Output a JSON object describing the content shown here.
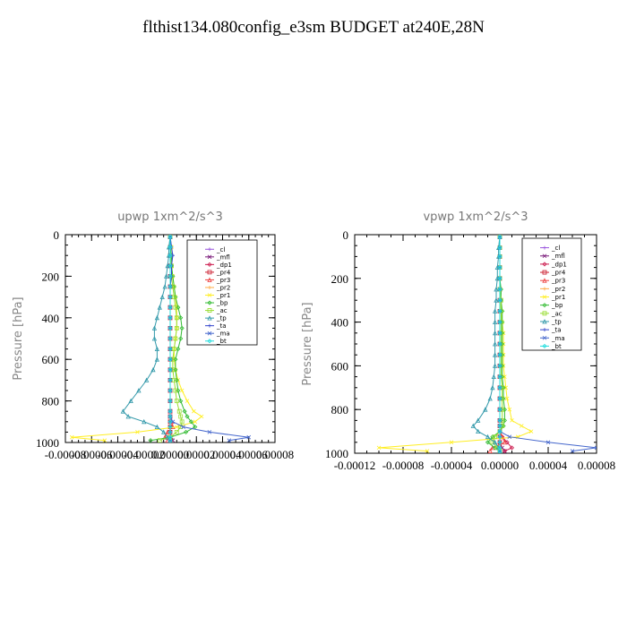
{
  "title": "flthist134.080config_e3sm  BUDGET at240E,28N",
  "legend_items": [
    "_cl",
    "_mfl",
    "_dp1",
    "_pr4",
    "_pr3",
    "_pr2",
    "_pr1",
    "_bp",
    "_ac",
    "_tp",
    "_ta",
    "_ma",
    "_bt"
  ],
  "colors": {
    "_cl": "#9955dd",
    "_mfl": "#7a1a7a",
    "_dp1": "#cc1a4d",
    "_pr4": "#cc2233",
    "_pr3": "#ee4444",
    "_pr2": "#ffaa44",
    "_pr1": "#ffee22",
    "_bp": "#33bb33",
    "_ac": "#99dd33",
    "_tp": "#3399aa",
    "_ta": "#3344cc",
    "_ma": "#4466cc",
    "_bt": "#22dddd"
  },
  "chart_data": [
    {
      "type": "line",
      "title": "upwp   1xm^2/s^3",
      "ylabel": "Pressure  [hPa]",
      "xlim": [
        -8e-05,
        8e-05
      ],
      "ylim": [
        1000,
        0
      ],
      "x_tick_labels": [
        "-0.00008",
        "-0.00006",
        "-0.00004",
        "-0.00002",
        "0.00000",
        "0.00002",
        "0.00004",
        "0.00006",
        "0.00008"
      ],
      "x_ticks": [
        -8e-05,
        -6e-05,
        -4e-05,
        -2e-05,
        0,
        2e-05,
        4e-05,
        6e-05,
        8e-05
      ],
      "y_tick_labels": [
        "0",
        "200",
        "400",
        "600",
        "800",
        "1000"
      ],
      "y_ticks": [
        0,
        200,
        400,
        600,
        800,
        1000
      ],
      "levels": [
        10,
        60,
        100,
        150,
        200,
        250,
        300,
        350,
        400,
        450,
        500,
        550,
        600,
        650,
        700,
        750,
        800,
        850,
        875,
        900,
        925,
        950,
        975,
        990
      ],
      "series": [
        {
          "name": "_cl",
          "values": [
            0,
            0,
            0,
            0,
            0,
            0,
            0,
            0,
            0,
            0,
            0,
            0,
            0,
            0,
            0,
            0,
            0,
            0,
            0,
            0,
            0,
            0,
            0,
            0
          ]
        },
        {
          "name": "_mfl",
          "values": [
            0,
            0,
            0,
            0,
            0,
            0,
            0,
            0,
            0,
            0,
            0,
            0,
            0,
            0,
            0,
            0,
            0,
            0,
            0,
            0,
            0,
            0,
            1e-06,
            2e-06
          ]
        },
        {
          "name": "_dp1",
          "values": [
            0,
            0,
            0,
            0,
            0,
            0,
            0,
            0,
            0,
            0,
            0,
            0,
            0,
            0,
            0,
            0,
            0,
            0,
            0,
            0,
            0,
            0,
            0,
            0
          ]
        },
        {
          "name": "_pr4",
          "values": [
            0,
            0,
            0,
            0,
            0,
            0,
            0,
            0,
            0,
            0,
            0,
            0,
            0,
            0,
            0,
            0,
            0,
            0,
            0,
            0,
            0,
            0,
            0,
            0
          ]
        },
        {
          "name": "_pr3",
          "values": [
            0,
            0,
            0,
            0,
            0,
            0,
            0,
            0,
            0,
            0,
            0,
            0,
            0,
            0,
            0,
            0,
            0,
            0,
            0,
            1e-06,
            2e-06,
            -2e-06,
            -4e-06,
            -2e-06
          ]
        },
        {
          "name": "_pr2",
          "values": [
            0,
            0,
            0,
            0,
            0,
            0,
            0,
            0,
            0,
            0,
            0,
            0,
            0,
            0,
            0,
            0,
            0,
            0,
            0,
            0,
            0,
            0,
            0,
            0
          ]
        },
        {
          "name": "_pr1",
          "values": [
            0,
            1e-06,
            0,
            1e-06,
            2e-06,
            3e-06,
            4e-06,
            5e-06,
            5e-06,
            5e-06,
            4e-06,
            3e-06,
            3e-06,
            4e-06,
            6e-06,
            9e-06,
            1.3e-05,
            1.8e-05,
            2.4e-05,
            1.9e-05,
            5e-06,
            -2.5e-05,
            -7.5e-05,
            -5e-05
          ]
        },
        {
          "name": "_bp",
          "values": [
            0,
            0,
            1e-06,
            1e-06,
            2e-06,
            3e-06,
            4e-06,
            6e-06,
            8e-06,
            9e-06,
            8e-06,
            6e-06,
            4e-06,
            4e-06,
            5e-06,
            6e-06,
            8e-06,
            1.1e-05,
            1.3e-05,
            1.6e-05,
            1.9e-05,
            1.2e-05,
            0,
            -1.5e-05
          ]
        },
        {
          "name": "_ac",
          "values": [
            0,
            0,
            0,
            1e-06,
            1e-06,
            2e-06,
            3e-06,
            4e-06,
            5e-06,
            5e-06,
            4e-06,
            3e-06,
            2e-06,
            2e-06,
            3e-06,
            4e-06,
            5e-06,
            7e-06,
            8e-06,
            9e-06,
            8e-06,
            5e-06,
            0,
            -8e-06
          ]
        },
        {
          "name": "_tp",
          "values": [
            0,
            -1e-06,
            -1e-06,
            -2e-06,
            -3e-06,
            -4e-06,
            -6e-06,
            -8e-06,
            -1e-05,
            -1.2e-05,
            -1.2e-05,
            -1e-05,
            -1e-05,
            -1.3e-05,
            -1.8e-05,
            -2.4e-05,
            -3e-05,
            -3.6e-05,
            -3.2e-05,
            -2e-05,
            -1e-05,
            -5e-06,
            -2e-06,
            0
          ]
        },
        {
          "name": "_ta",
          "values": [
            0,
            1e-06,
            2e-06,
            1e-06,
            1e-06,
            0,
            0,
            0,
            0,
            0,
            0,
            0,
            0,
            0,
            0,
            0,
            0,
            0,
            0,
            0,
            0,
            0,
            0,
            0
          ]
        },
        {
          "name": "_ma",
          "values": [
            0,
            0,
            0,
            0,
            0,
            0,
            0,
            0,
            0,
            0,
            0,
            0,
            0,
            0,
            0,
            0,
            0,
            0,
            0,
            2e-06,
            1e-05,
            3e-05,
            6e-05,
            4.5e-05
          ]
        },
        {
          "name": "_bt",
          "values": [
            0,
            0,
            0,
            0,
            0,
            0,
            0,
            0,
            0,
            0,
            0,
            0,
            0,
            0,
            0,
            0,
            0,
            0,
            0,
            0,
            0,
            0,
            0,
            0
          ]
        }
      ]
    },
    {
      "type": "line",
      "title": "vpwp   1xm^2/s^3",
      "ylabel": "Pressure  [hPa]",
      "xlim": [
        -0.00012,
        8e-05
      ],
      "ylim": [
        1000,
        0
      ],
      "x_tick_labels": [
        "-0.00012",
        "-0.00008",
        "-0.00004",
        "0.00000",
        "0.00004",
        "0.00008"
      ],
      "x_ticks": [
        -0.00012,
        -8e-05,
        -4e-05,
        0,
        4e-05,
        8e-05
      ],
      "y_tick_labels": [
        "0",
        "200",
        "400",
        "600",
        "800",
        "1000"
      ],
      "y_ticks": [
        0,
        200,
        400,
        600,
        800,
        1000
      ],
      "levels": [
        10,
        60,
        100,
        150,
        200,
        250,
        300,
        350,
        400,
        450,
        500,
        550,
        600,
        650,
        700,
        750,
        800,
        850,
        875,
        900,
        925,
        950,
        975,
        990
      ],
      "series": [
        {
          "name": "_cl",
          "values": [
            0,
            0,
            0,
            0,
            0,
            0,
            0,
            0,
            0,
            0,
            0,
            0,
            0,
            0,
            0,
            0,
            0,
            0,
            0,
            0,
            0,
            0,
            0,
            0
          ]
        },
        {
          "name": "_mfl",
          "values": [
            0,
            0,
            0,
            0,
            0,
            0,
            0,
            0,
            0,
            0,
            0,
            0,
            0,
            0,
            0,
            0,
            0,
            0,
            0,
            0,
            0,
            0,
            2e-06,
            4e-06
          ]
        },
        {
          "name": "_dp1",
          "values": [
            0,
            0,
            0,
            0,
            0,
            0,
            0,
            0,
            0,
            0,
            0,
            0,
            0,
            0,
            0,
            0,
            0,
            0,
            0,
            0,
            2e-06,
            6e-06,
            1e-05,
            4e-06
          ]
        },
        {
          "name": "_pr4",
          "values": [
            0,
            0,
            0,
            0,
            0,
            0,
            0,
            0,
            0,
            0,
            0,
            0,
            0,
            0,
            0,
            0,
            0,
            0,
            0,
            0,
            0,
            0,
            0,
            0
          ]
        },
        {
          "name": "_pr3",
          "values": [
            0,
            0,
            0,
            0,
            0,
            0,
            0,
            0,
            0,
            0,
            0,
            0,
            0,
            0,
            0,
            0,
            0,
            0,
            0,
            0,
            2e-06,
            4e-06,
            -6e-06,
            -8e-06
          ]
        },
        {
          "name": "_pr2",
          "values": [
            0,
            0,
            0,
            0,
            0,
            0,
            0,
            0,
            0,
            0,
            0,
            0,
            0,
            0,
            0,
            0,
            0,
            0,
            0,
            0,
            0,
            0,
            0,
            0
          ]
        },
        {
          "name": "_pr1",
          "values": [
            0,
            0,
            0,
            0,
            0,
            0,
            0,
            1e-06,
            2e-06,
            3e-06,
            3e-06,
            3e-06,
            3e-06,
            4e-06,
            5e-06,
            6e-06,
            8e-06,
            1e-05,
            1.8e-05,
            2.6e-05,
            1.5e-05,
            -4e-05,
            -0.0001,
            -6e-05
          ]
        },
        {
          "name": "_bp",
          "values": [
            0,
            0,
            0,
            0,
            0,
            1e-06,
            1e-06,
            2e-06,
            2e-06,
            2e-06,
            2e-06,
            2e-06,
            2e-06,
            2e-06,
            3e-06,
            3e-06,
            4e-06,
            4e-06,
            3e-06,
            0,
            -6e-06,
            -1e-05,
            -4e-06,
            0
          ]
        },
        {
          "name": "_ac",
          "values": [
            0,
            0,
            0,
            0,
            0,
            0,
            1e-06,
            1e-06,
            1e-06,
            1e-06,
            1e-06,
            1e-06,
            1e-06,
            1e-06,
            2e-06,
            2e-06,
            2e-06,
            2e-06,
            2e-06,
            0,
            -4e-06,
            -6e-06,
            -2e-06,
            0
          ]
        },
        {
          "name": "_tp",
          "values": [
            0,
            -1e-06,
            -1e-06,
            -2e-06,
            -2e-06,
            -3e-06,
            -3e-06,
            -4e-06,
            -4e-06,
            -4e-06,
            -4e-06,
            -4e-06,
            -4e-06,
            -5e-06,
            -6e-06,
            -8e-06,
            -1.2e-05,
            -1.8e-05,
            -2.2e-05,
            -1.8e-05,
            -1e-05,
            -4e-06,
            -1e-06,
            0
          ]
        },
        {
          "name": "_ta",
          "values": [
            0,
            0,
            0,
            0,
            0,
            0,
            0,
            0,
            0,
            0,
            0,
            0,
            0,
            0,
            0,
            0,
            0,
            0,
            0,
            0,
            0,
            0,
            0,
            0
          ]
        },
        {
          "name": "_ma",
          "values": [
            0,
            0,
            0,
            0,
            0,
            0,
            0,
            0,
            0,
            0,
            0,
            0,
            0,
            0,
            0,
            0,
            0,
            0,
            0,
            0,
            8e-06,
            4e-05,
            8e-05,
            6e-05
          ]
        },
        {
          "name": "_bt",
          "values": [
            0,
            0,
            0,
            0,
            0,
            0,
            0,
            0,
            0,
            0,
            0,
            0,
            0,
            0,
            0,
            0,
            0,
            0,
            0,
            0,
            0,
            0,
            0,
            0
          ]
        }
      ]
    }
  ]
}
